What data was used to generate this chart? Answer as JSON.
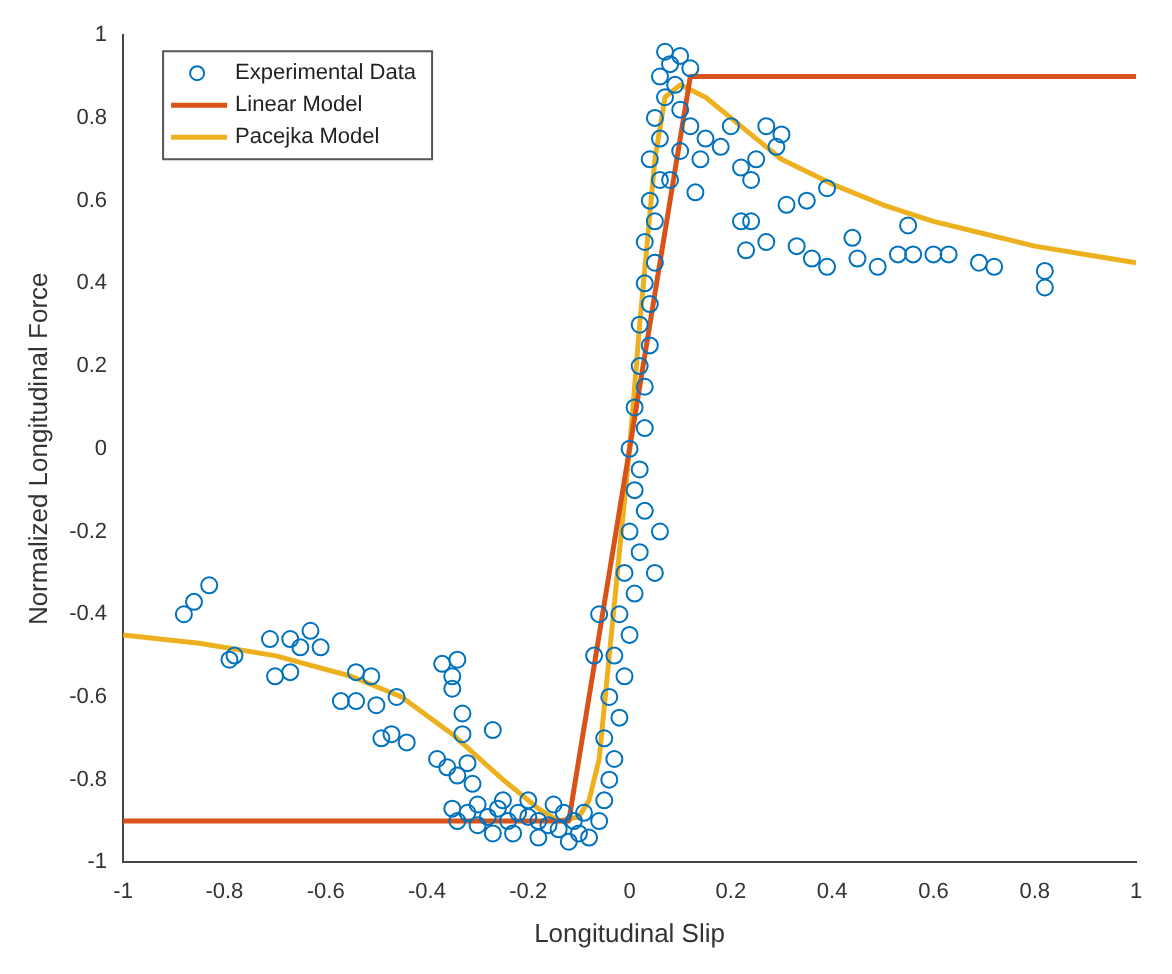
{
  "chart_data": {
    "type": "scatter",
    "xlabel": "Longitudinal Slip",
    "ylabel": "Normalized Longitudinal Force",
    "xlim": [
      -1,
      1
    ],
    "xticks": [
      -1,
      -0.8,
      -0.6,
      -0.4,
      -0.2,
      0,
      0.2,
      0.4,
      0.6,
      0.8,
      1
    ],
    "ylim": [
      -1,
      1
    ],
    "yticks": [
      -1,
      -0.8,
      -0.6,
      -0.4,
      -0.2,
      0,
      0.2,
      0.4,
      0.6,
      0.8,
      1
    ],
    "grid": false,
    "legend": "top left",
    "series": [
      {
        "name": "Experimental Data",
        "marker": "circle",
        "color": "#0072bd",
        "x": [
          -0.88,
          -0.86,
          -0.83,
          -0.79,
          -0.78,
          -0.71,
          -0.67,
          -0.7,
          -0.67,
          -0.63,
          -0.65,
          -0.61,
          -0.57,
          -0.54,
          -0.54,
          -0.51,
          -0.5,
          -0.46,
          -0.49,
          -0.47,
          -0.44,
          -0.37,
          -0.34,
          -0.35,
          -0.35,
          -0.33,
          -0.33,
          -0.27,
          -0.38,
          -0.36,
          -0.32,
          -0.34,
          -0.31,
          -0.27,
          -0.23,
          -0.35,
          -0.32,
          -0.3,
          -0.28,
          -0.26,
          -0.24,
          -0.22,
          -0.2,
          -0.18,
          -0.16,
          -0.14,
          -0.13,
          -0.15,
          -0.2,
          -0.25,
          -0.3,
          -0.34,
          -0.18,
          -0.11,
          -0.09,
          -0.12,
          -0.1,
          -0.08,
          -0.06,
          -0.05,
          -0.04,
          -0.03,
          -0.05,
          -0.02,
          -0.04,
          -0.01,
          -0.03,
          0,
          -0.02,
          0.01,
          -0.01,
          0.02,
          0,
          0.03,
          0.01,
          0.02,
          0,
          0.03,
          0.01,
          0.03,
          0.02,
          0.04,
          0.02,
          0.04,
          0.03,
          0.05,
          0.03,
          0.05,
          0.04,
          0.06,
          0.04,
          0.06,
          0.05,
          0.07,
          0.06,
          0.08,
          0.07,
          0.1,
          0.12,
          0.09,
          0.1,
          0.12,
          0.1,
          0.08,
          0.14,
          0.15,
          0.13,
          -0.06,
          -0.07,
          0.05,
          0.06,
          0.22,
          0.24,
          0.23,
          0.27,
          0.33,
          0.36,
          0.39,
          0.31,
          0.35,
          0.39,
          0.44,
          0.45,
          0.49,
          0.53,
          0.55,
          0.56,
          0.6,
          0.63,
          0.69,
          0.72,
          0.82,
          0.82,
          0.3,
          0.27,
          0.29,
          0.25,
          0.22,
          0.24,
          0.18,
          0.2
        ],
        "values": [
          -0.4,
          -0.37,
          -0.33,
          -0.51,
          -0.5,
          -0.46,
          -0.46,
          -0.55,
          -0.54,
          -0.44,
          -0.48,
          -0.48,
          -0.61,
          -0.61,
          -0.54,
          -0.55,
          -0.62,
          -0.6,
          -0.7,
          -0.69,
          -0.71,
          -0.52,
          -0.51,
          -0.55,
          -0.58,
          -0.64,
          -0.69,
          -0.68,
          -0.75,
          -0.77,
          -0.76,
          -0.79,
          -0.81,
          -0.93,
          -0.93,
          -0.87,
          -0.88,
          -0.86,
          -0.89,
          -0.87,
          -0.9,
          -0.88,
          -0.89,
          -0.9,
          -0.91,
          -0.92,
          -0.88,
          -0.86,
          -0.85,
          -0.85,
          -0.91,
          -0.9,
          -0.94,
          -0.9,
          -0.88,
          -0.95,
          -0.93,
          -0.94,
          -0.9,
          -0.85,
          -0.8,
          -0.75,
          -0.7,
          -0.65,
          -0.6,
          -0.55,
          -0.5,
          -0.45,
          -0.4,
          -0.35,
          -0.3,
          -0.25,
          -0.2,
          -0.15,
          -0.1,
          -0.05,
          0,
          0.05,
          0.1,
          0.15,
          0.2,
          0.25,
          0.3,
          0.35,
          0.4,
          0.45,
          0.5,
          0.55,
          0.6,
          0.65,
          0.7,
          0.75,
          0.8,
          0.85,
          0.9,
          0.93,
          0.96,
          0.95,
          0.92,
          0.88,
          0.82,
          0.78,
          0.72,
          0.65,
          0.7,
          0.75,
          0.62,
          -0.4,
          -0.5,
          -0.3,
          -0.2,
          0.55,
          0.55,
          0.48,
          0.5,
          0.49,
          0.46,
          0.44,
          0.59,
          0.6,
          0.63,
          0.51,
          0.46,
          0.44,
          0.47,
          0.54,
          0.47,
          0.47,
          0.47,
          0.45,
          0.44,
          0.43,
          0.39,
          0.76,
          0.78,
          0.73,
          0.7,
          0.68,
          0.65,
          0.73,
          0.78
        ]
      },
      {
        "name": "Linear Model",
        "type": "line",
        "marker": "none",
        "line_style": "solid",
        "color": "#d95319",
        "x": [
          -1,
          -0.12,
          0.12,
          1
        ],
        "values": [
          -0.9,
          -0.9,
          0.9,
          0.9
        ]
      },
      {
        "name": "Pacejka Model",
        "type": "line",
        "marker": "none",
        "line_style": "solid",
        "color": "#edb120",
        "x": [
          -1,
          -0.85,
          -0.7,
          -0.55,
          -0.45,
          -0.35,
          -0.25,
          -0.18,
          -0.14,
          -0.1,
          -0.08,
          -0.06,
          -0.04,
          -0.02,
          0,
          0.02,
          0.035,
          0.05,
          0.07,
          0.1,
          0.15,
          0.2,
          0.25,
          0.3,
          0.4,
          0.5,
          0.6,
          0.7,
          0.8,
          0.9,
          1
        ],
        "values": [
          -0.45,
          -0.47,
          -0.5,
          -0.55,
          -0.6,
          -0.69,
          -0.8,
          -0.87,
          -0.9,
          -0.89,
          -0.85,
          -0.75,
          -0.5,
          -0.25,
          0,
          0.3,
          0.5,
          0.7,
          0.85,
          0.88,
          0.85,
          0.8,
          0.75,
          0.7,
          0.64,
          0.59,
          0.55,
          0.52,
          0.49,
          0.47,
          0.45
        ]
      }
    ]
  }
}
